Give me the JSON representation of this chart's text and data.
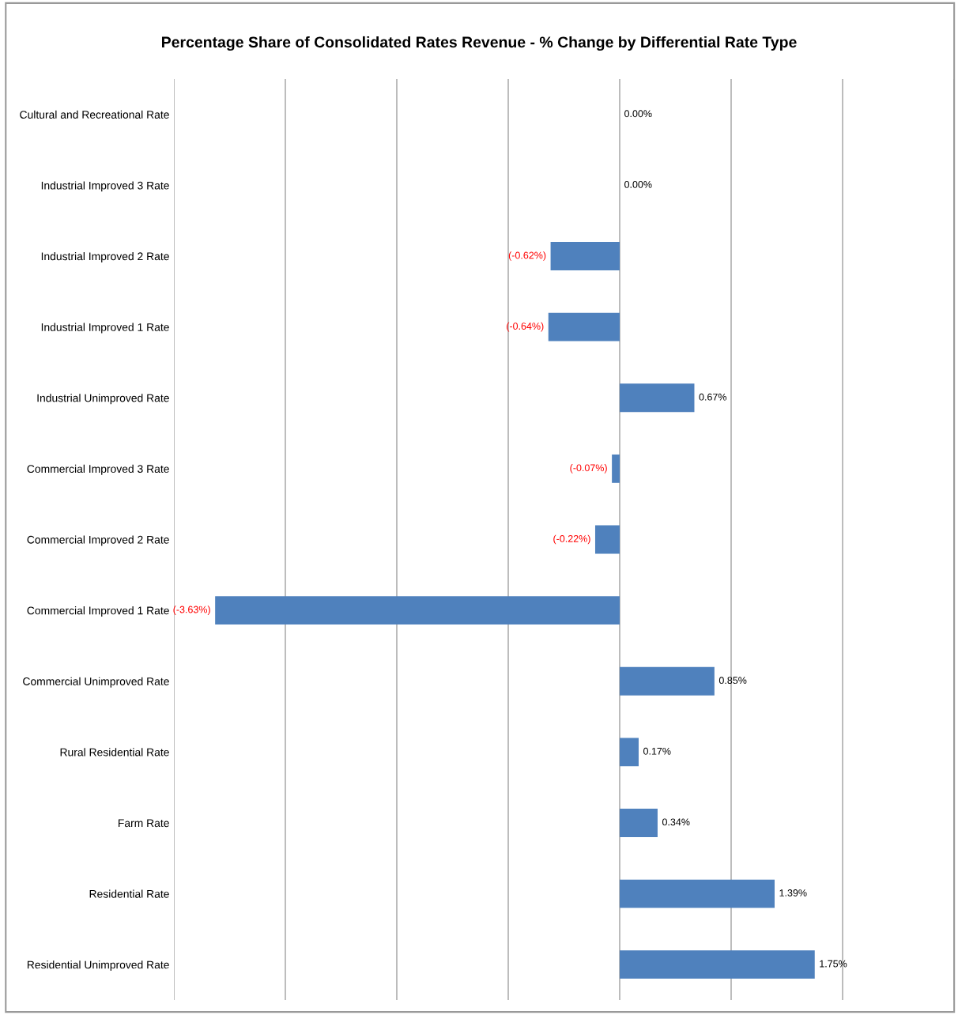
{
  "chart_data": {
    "type": "bar",
    "orientation": "horizontal",
    "title": "Percentage Share of Consolidated Rates Revenue - % Change by Differential Rate Type",
    "categories": [
      "Cultural and Recreational Rate",
      "Industrial Improved 3 Rate",
      "Industrial Improved 2 Rate",
      "Industrial Improved 1 Rate",
      "Industrial Unimproved Rate",
      "Commercial Improved 3 Rate",
      "Commercial Improved 2 Rate",
      "Commercial Improved 1 Rate",
      "Commercial Unimproved Rate",
      "Rural Residential Rate",
      "Farm Rate",
      "Residential Rate",
      "Residential Unimproved Rate"
    ],
    "values": [
      0.0,
      0.0,
      -0.62,
      -0.64,
      0.67,
      -0.07,
      -0.22,
      -3.63,
      0.85,
      0.17,
      0.34,
      1.39,
      1.75
    ],
    "value_labels": [
      "0.00%",
      "0.00%",
      "(-0.62%)",
      "(-0.64%)",
      "0.67%",
      "(-0.07%)",
      "(-0.22%)",
      "(-3.63%)",
      "0.85%",
      "0.17%",
      "0.34%",
      "1.39%",
      "1.75%"
    ],
    "color": "#4f81bd",
    "xlim": [
      -4,
      3
    ],
    "xticks": [
      {
        "value": -4,
        "label": null
      },
      {
        "value": -3,
        "label": null
      },
      {
        "value": -2,
        "label": null
      },
      {
        "value": -1,
        "label": null
      },
      {
        "value": 0,
        "label": null
      },
      {
        "value": 1,
        "label": null
      },
      {
        "value": 2,
        "label": null
      },
      {
        "value": 3,
        "label": null
      }
    ],
    "tick_labels": "y",
    "grid": "x",
    "legend": false
  }
}
